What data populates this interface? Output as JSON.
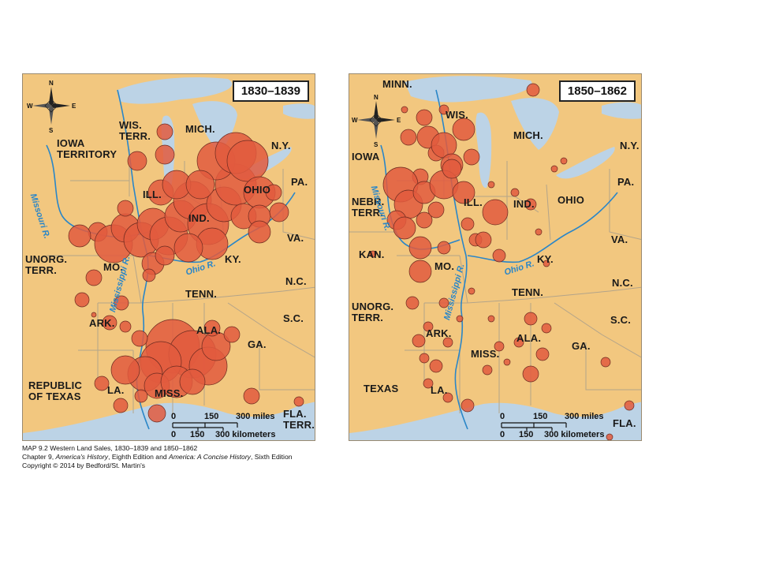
{
  "maps": [
    {
      "period": "1830–1839",
      "regions": [
        "WIS.",
        "TERR.",
        "MICH.",
        "N.Y.",
        "IOWA",
        "TERRITORY",
        "PA.",
        "OHIO",
        "ILL.",
        "IND.",
        "VA.",
        "UNORG.",
        "TERR.",
        "MO.",
        "KY.",
        "N.C.",
        "TENN.",
        "ARK.",
        "ALA.",
        "S.C.",
        "GA.",
        "REPUBLIC",
        "OF TEXAS",
        "LA.",
        "MISS.",
        "FLA.",
        "TERR."
      ],
      "rivers": [
        "Missouri R.",
        "Ohio R.",
        "Mississippi R."
      ]
    },
    {
      "period": "1850–1862",
      "regions": [
        "MINN.",
        "WIS.",
        "MICH.",
        "N.Y.",
        "IOWA",
        "PA.",
        "NEBR.",
        "TERR.",
        "ILL.",
        "IND.",
        "OHIO",
        "VA.",
        "KAN.",
        "MO.",
        "KY.",
        "N.C.",
        "TENN.",
        "UNORG.",
        "TERR.",
        "ARK.",
        "S.C.",
        "ALA.",
        "MISS.",
        "GA.",
        "TEXAS",
        "LA.",
        "FLA."
      ],
      "rivers": [
        "Missouri R.",
        "Ohio R.",
        "Mississippi R."
      ]
    }
  ],
  "compass": {
    "n": "N",
    "s": "S",
    "e": "E",
    "w": "W"
  },
  "scale": {
    "ticks": [
      "0",
      "150",
      "300 miles"
    ],
    "km_ticks": [
      "0",
      "150",
      "300 kilometers"
    ]
  },
  "caption": {
    "line1": "MAP 9.2  Western Land Sales, 1830–1839 and 1850–1862",
    "line2_pre": "Chapter 9, ",
    "line2_book1": "America's History",
    "line2_mid": ", Eighth Edition and ",
    "line2_book2": "America: A Concise History",
    "line2_post": ", Sixth Edition",
    "line3": "Copyright © 2014 by Bedford/St. Martin's"
  },
  "colors": {
    "land": "#f2c77f",
    "water": "#bcd3e6",
    "sales_circle": "#e25a3e",
    "river": "#2a86c8"
  }
}
